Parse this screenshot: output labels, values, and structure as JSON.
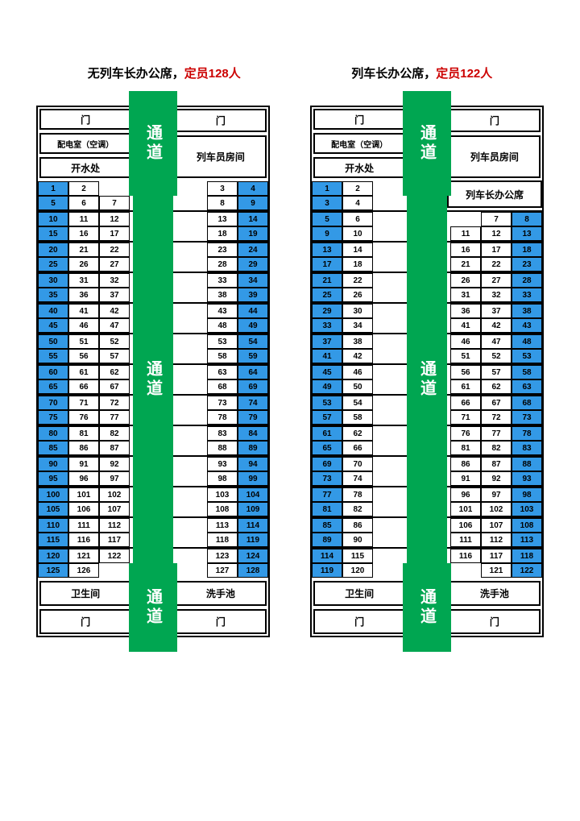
{
  "colors": {
    "green": "#00a651",
    "blue": "#3399e6",
    "red": "#cc0000",
    "black": "#000000",
    "white": "#ffffff"
  },
  "titles": {
    "left_prefix": "无列车长办公席，",
    "left_highlight": "定员128人",
    "right_prefix": "列车长办公席，",
    "right_highlight": "定员122人"
  },
  "labels": {
    "corridor": "通道",
    "door": "门",
    "power_room": "配电室（空调）",
    "hot_water": "开水处",
    "staff_room": "列车员房间",
    "conductor_office": "列车长办公席",
    "toilet": "卫生间",
    "wash": "洗手池"
  },
  "left_car": {
    "left_rows": [
      [
        {
          "n": "1",
          "w": 1
        },
        {
          "n": "2",
          "w": 0
        },
        {
          "n": "",
          "e": 1
        }
      ],
      [
        {
          "n": "5",
          "w": 1
        },
        {
          "n": "6",
          "w": 0
        },
        {
          "n": "7",
          "w": 0
        }
      ],
      [
        {
          "n": "10",
          "w": 1
        },
        {
          "n": "11",
          "w": 0
        },
        {
          "n": "12",
          "w": 0
        }
      ],
      [
        {
          "n": "15",
          "w": 1
        },
        {
          "n": "16",
          "w": 0
        },
        {
          "n": "17",
          "w": 0
        }
      ],
      [
        {
          "n": "20",
          "w": 1
        },
        {
          "n": "21",
          "w": 0
        },
        {
          "n": "22",
          "w": 0
        }
      ],
      [
        {
          "n": "25",
          "w": 1
        },
        {
          "n": "26",
          "w": 0
        },
        {
          "n": "27",
          "w": 0
        }
      ],
      [
        {
          "n": "30",
          "w": 1
        },
        {
          "n": "31",
          "w": 0
        },
        {
          "n": "32",
          "w": 0
        }
      ],
      [
        {
          "n": "35",
          "w": 1
        },
        {
          "n": "36",
          "w": 0
        },
        {
          "n": "37",
          "w": 0
        }
      ],
      [
        {
          "n": "40",
          "w": 1
        },
        {
          "n": "41",
          "w": 0
        },
        {
          "n": "42",
          "w": 0
        }
      ],
      [
        {
          "n": "45",
          "w": 1
        },
        {
          "n": "46",
          "w": 0
        },
        {
          "n": "47",
          "w": 0
        }
      ],
      [
        {
          "n": "50",
          "w": 1
        },
        {
          "n": "51",
          "w": 0
        },
        {
          "n": "52",
          "w": 0
        }
      ],
      [
        {
          "n": "55",
          "w": 1
        },
        {
          "n": "56",
          "w": 0
        },
        {
          "n": "57",
          "w": 0
        }
      ],
      [
        {
          "n": "60",
          "w": 1
        },
        {
          "n": "61",
          "w": 0
        },
        {
          "n": "62",
          "w": 0
        }
      ],
      [
        {
          "n": "65",
          "w": 1
        },
        {
          "n": "66",
          "w": 0
        },
        {
          "n": "67",
          "w": 0
        }
      ],
      [
        {
          "n": "70",
          "w": 1
        },
        {
          "n": "71",
          "w": 0
        },
        {
          "n": "72",
          "w": 0
        }
      ],
      [
        {
          "n": "75",
          "w": 1
        },
        {
          "n": "76",
          "w": 0
        },
        {
          "n": "77",
          "w": 0
        }
      ],
      [
        {
          "n": "80",
          "w": 1
        },
        {
          "n": "81",
          "w": 0
        },
        {
          "n": "82",
          "w": 0
        }
      ],
      [
        {
          "n": "85",
          "w": 1
        },
        {
          "n": "86",
          "w": 0
        },
        {
          "n": "87",
          "w": 0
        }
      ],
      [
        {
          "n": "90",
          "w": 1
        },
        {
          "n": "91",
          "w": 0
        },
        {
          "n": "92",
          "w": 0
        }
      ],
      [
        {
          "n": "95",
          "w": 1
        },
        {
          "n": "96",
          "w": 0
        },
        {
          "n": "97",
          "w": 0
        }
      ],
      [
        {
          "n": "100",
          "w": 1
        },
        {
          "n": "101",
          "w": 0
        },
        {
          "n": "102",
          "w": 0
        }
      ],
      [
        {
          "n": "105",
          "w": 1
        },
        {
          "n": "106",
          "w": 0
        },
        {
          "n": "107",
          "w": 0
        }
      ],
      [
        {
          "n": "110",
          "w": 1
        },
        {
          "n": "111",
          "w": 0
        },
        {
          "n": "112",
          "w": 0
        }
      ],
      [
        {
          "n": "115",
          "w": 1
        },
        {
          "n": "116",
          "w": 0
        },
        {
          "n": "117",
          "w": 0
        }
      ],
      [
        {
          "n": "120",
          "w": 1
        },
        {
          "n": "121",
          "w": 0
        },
        {
          "n": "122",
          "w": 0
        }
      ],
      [
        {
          "n": "125",
          "w": 1
        },
        {
          "n": "126",
          "w": 0
        },
        {
          "n": "",
          "e": 1
        }
      ]
    ],
    "right_rows": [
      [
        {
          "n": "3",
          "w": 0
        },
        {
          "n": "4",
          "w": 1
        }
      ],
      [
        {
          "n": "8",
          "w": 0
        },
        {
          "n": "9",
          "w": 1
        }
      ],
      [
        {
          "n": "13",
          "w": 0
        },
        {
          "n": "14",
          "w": 1
        }
      ],
      [
        {
          "n": "18",
          "w": 0
        },
        {
          "n": "19",
          "w": 1
        }
      ],
      [
        {
          "n": "23",
          "w": 0
        },
        {
          "n": "24",
          "w": 1
        }
      ],
      [
        {
          "n": "28",
          "w": 0
        },
        {
          "n": "29",
          "w": 1
        }
      ],
      [
        {
          "n": "33",
          "w": 0
        },
        {
          "n": "34",
          "w": 1
        }
      ],
      [
        {
          "n": "38",
          "w": 0
        },
        {
          "n": "39",
          "w": 1
        }
      ],
      [
        {
          "n": "43",
          "w": 0
        },
        {
          "n": "44",
          "w": 1
        }
      ],
      [
        {
          "n": "48",
          "w": 0
        },
        {
          "n": "49",
          "w": 1
        }
      ],
      [
        {
          "n": "53",
          "w": 0
        },
        {
          "n": "54",
          "w": 1
        }
      ],
      [
        {
          "n": "58",
          "w": 0
        },
        {
          "n": "59",
          "w": 1
        }
      ],
      [
        {
          "n": "63",
          "w": 0
        },
        {
          "n": "64",
          "w": 1
        }
      ],
      [
        {
          "n": "68",
          "w": 0
        },
        {
          "n": "69",
          "w": 1
        }
      ],
      [
        {
          "n": "73",
          "w": 0
        },
        {
          "n": "74",
          "w": 1
        }
      ],
      [
        {
          "n": "78",
          "w": 0
        },
        {
          "n": "79",
          "w": 1
        }
      ],
      [
        {
          "n": "83",
          "w": 0
        },
        {
          "n": "84",
          "w": 1
        }
      ],
      [
        {
          "n": "88",
          "w": 0
        },
        {
          "n": "89",
          "w": 1
        }
      ],
      [
        {
          "n": "93",
          "w": 0
        },
        {
          "n": "94",
          "w": 1
        }
      ],
      [
        {
          "n": "98",
          "w": 0
        },
        {
          "n": "99",
          "w": 1
        }
      ],
      [
        {
          "n": "103",
          "w": 0
        },
        {
          "n": "104",
          "w": 1
        }
      ],
      [
        {
          "n": "108",
          "w": 0
        },
        {
          "n": "109",
          "w": 1
        }
      ],
      [
        {
          "n": "113",
          "w": 0
        },
        {
          "n": "114",
          "w": 1
        }
      ],
      [
        {
          "n": "118",
          "w": 0
        },
        {
          "n": "119",
          "w": 1
        }
      ],
      [
        {
          "n": "123",
          "w": 0
        },
        {
          "n": "124",
          "w": 1
        }
      ],
      [
        {
          "n": "127",
          "w": 0
        },
        {
          "n": "128",
          "w": 1
        }
      ]
    ]
  },
  "right_car": {
    "left_rows": [
      [
        {
          "n": "1",
          "w": 1
        },
        {
          "n": "2",
          "w": 0
        },
        {
          "n": "",
          "e": 1
        }
      ],
      [
        {
          "n": "3",
          "w": 1
        },
        {
          "n": "4",
          "w": 0
        },
        {
          "n": "",
          "e": 1
        }
      ],
      [
        {
          "n": "5",
          "w": 1
        },
        {
          "n": "6",
          "w": 0
        },
        {
          "n": "",
          "e": 1
        }
      ],
      [
        {
          "n": "9",
          "w": 1
        },
        {
          "n": "10",
          "w": 0
        },
        {
          "n": "",
          "e": 1
        }
      ],
      [
        {
          "n": "13",
          "w": 1
        },
        {
          "n": "14",
          "w": 0
        },
        {
          "n": "",
          "e": 1
        }
      ],
      [
        {
          "n": "17",
          "w": 1
        },
        {
          "n": "18",
          "w": 0
        },
        {
          "n": "",
          "e": 1
        }
      ],
      [
        {
          "n": "21",
          "w": 1
        },
        {
          "n": "22",
          "w": 0
        },
        {
          "n": "",
          "e": 1
        }
      ],
      [
        {
          "n": "25",
          "w": 1
        },
        {
          "n": "26",
          "w": 0
        },
        {
          "n": "",
          "e": 1
        }
      ],
      [
        {
          "n": "29",
          "w": 1
        },
        {
          "n": "30",
          "w": 0
        },
        {
          "n": "",
          "e": 1
        }
      ],
      [
        {
          "n": "33",
          "w": 1
        },
        {
          "n": "34",
          "w": 0
        },
        {
          "n": "",
          "e": 1
        }
      ],
      [
        {
          "n": "37",
          "w": 1
        },
        {
          "n": "38",
          "w": 0
        },
        {
          "n": "",
          "e": 1
        }
      ],
      [
        {
          "n": "41",
          "w": 1
        },
        {
          "n": "42",
          "w": 0
        },
        {
          "n": "",
          "e": 1
        }
      ],
      [
        {
          "n": "45",
          "w": 1
        },
        {
          "n": "46",
          "w": 0
        },
        {
          "n": "",
          "e": 1
        }
      ],
      [
        {
          "n": "49",
          "w": 1
        },
        {
          "n": "50",
          "w": 0
        },
        {
          "n": "",
          "e": 1
        }
      ],
      [
        {
          "n": "53",
          "w": 1
        },
        {
          "n": "54",
          "w": 0
        },
        {
          "n": "",
          "e": 1
        }
      ],
      [
        {
          "n": "57",
          "w": 1
        },
        {
          "n": "58",
          "w": 0
        },
        {
          "n": "",
          "e": 1
        }
      ],
      [
        {
          "n": "61",
          "w": 1
        },
        {
          "n": "62",
          "w": 0
        },
        {
          "n": "",
          "e": 1
        }
      ],
      [
        {
          "n": "65",
          "w": 1
        },
        {
          "n": "66",
          "w": 0
        },
        {
          "n": "",
          "e": 1
        }
      ],
      [
        {
          "n": "69",
          "w": 1
        },
        {
          "n": "70",
          "w": 0
        },
        {
          "n": "",
          "e": 1
        }
      ],
      [
        {
          "n": "73",
          "w": 1
        },
        {
          "n": "74",
          "w": 0
        },
        {
          "n": "",
          "e": 1
        }
      ],
      [
        {
          "n": "77",
          "w": 1
        },
        {
          "n": "78",
          "w": 0
        },
        {
          "n": "",
          "e": 1
        }
      ],
      [
        {
          "n": "81",
          "w": 1
        },
        {
          "n": "82",
          "w": 0
        },
        {
          "n": "",
          "e": 1
        }
      ],
      [
        {
          "n": "85",
          "w": 1
        },
        {
          "n": "86",
          "w": 0
        },
        {
          "n": "",
          "e": 1
        }
      ],
      [
        {
          "n": "89",
          "w": 1
        },
        {
          "n": "90",
          "w": 0
        },
        {
          "n": "",
          "e": 1
        }
      ],
      [
        {
          "n": "114",
          "w": 1
        },
        {
          "n": "115",
          "w": 0
        },
        {
          "n": "",
          "e": 1
        }
      ],
      [
        {
          "n": "119",
          "w": 1
        },
        {
          "n": "120",
          "w": 0
        },
        {
          "n": "",
          "e": 1
        }
      ]
    ],
    "right_rows": [
      [
        {
          "n": "",
          "e": 1
        },
        {
          "n": "",
          "e": 1
        },
        {
          "n": "",
          "e": 1
        }
      ],
      [
        {
          "n": "",
          "e": 1
        },
        {
          "n": "",
          "e": 1
        },
        {
          "n": "",
          "e": 1
        }
      ],
      [
        {
          "n": "",
          "e": 1
        },
        {
          "n": "7",
          "w": 0
        },
        {
          "n": "8",
          "w": 1
        }
      ],
      [
        {
          "n": "11",
          "w": 0
        },
        {
          "n": "12",
          "w": 0
        },
        {
          "n": "13",
          "w": 1
        }
      ],
      [
        {
          "n": "16",
          "w": 0
        },
        {
          "n": "17",
          "w": 0
        },
        {
          "n": "18",
          "w": 1
        }
      ],
      [
        {
          "n": "21",
          "w": 0
        },
        {
          "n": "22",
          "w": 0
        },
        {
          "n": "23",
          "w": 1
        }
      ],
      [
        {
          "n": "26",
          "w": 0
        },
        {
          "n": "27",
          "w": 0
        },
        {
          "n": "28",
          "w": 1
        }
      ],
      [
        {
          "n": "31",
          "w": 0
        },
        {
          "n": "32",
          "w": 0
        },
        {
          "n": "33",
          "w": 1
        }
      ],
      [
        {
          "n": "36",
          "w": 0
        },
        {
          "n": "37",
          "w": 0
        },
        {
          "n": "38",
          "w": 1
        }
      ],
      [
        {
          "n": "41",
          "w": 0
        },
        {
          "n": "42",
          "w": 0
        },
        {
          "n": "43",
          "w": 1
        }
      ],
      [
        {
          "n": "46",
          "w": 0
        },
        {
          "n": "47",
          "w": 0
        },
        {
          "n": "48",
          "w": 1
        }
      ],
      [
        {
          "n": "51",
          "w": 0
        },
        {
          "n": "52",
          "w": 0
        },
        {
          "n": "53",
          "w": 1
        }
      ],
      [
        {
          "n": "56",
          "w": 0
        },
        {
          "n": "57",
          "w": 0
        },
        {
          "n": "58",
          "w": 1
        }
      ],
      [
        {
          "n": "61",
          "w": 0
        },
        {
          "n": "62",
          "w": 0
        },
        {
          "n": "63",
          "w": 1
        }
      ],
      [
        {
          "n": "66",
          "w": 0
        },
        {
          "n": "67",
          "w": 0
        },
        {
          "n": "68",
          "w": 1
        }
      ],
      [
        {
          "n": "71",
          "w": 0
        },
        {
          "n": "72",
          "w": 0
        },
        {
          "n": "73",
          "w": 1
        }
      ],
      [
        {
          "n": "76",
          "w": 0
        },
        {
          "n": "77",
          "w": 0
        },
        {
          "n": "78",
          "w": 1
        }
      ],
      [
        {
          "n": "81",
          "w": 0
        },
        {
          "n": "82",
          "w": 0
        },
        {
          "n": "83",
          "w": 1
        }
      ],
      [
        {
          "n": "86",
          "w": 0
        },
        {
          "n": "87",
          "w": 0
        },
        {
          "n": "88",
          "w": 1
        }
      ],
      [
        {
          "n": "91",
          "w": 0
        },
        {
          "n": "92",
          "w": 0
        },
        {
          "n": "93",
          "w": 1
        }
      ],
      [
        {
          "n": "96",
          "w": 0
        },
        {
          "n": "97",
          "w": 0
        },
        {
          "n": "98",
          "w": 1
        }
      ],
      [
        {
          "n": "101",
          "w": 0
        },
        {
          "n": "102",
          "w": 0
        },
        {
          "n": "103",
          "w": 1
        }
      ],
      [
        {
          "n": "106",
          "w": 0
        },
        {
          "n": "107",
          "w": 0
        },
        {
          "n": "108",
          "w": 1
        }
      ],
      [
        {
          "n": "111",
          "w": 0
        },
        {
          "n": "112",
          "w": 0
        },
        {
          "n": "113",
          "w": 1
        }
      ],
      [
        {
          "n": "116",
          "w": 0
        },
        {
          "n": "117",
          "w": 0
        },
        {
          "n": "118",
          "w": 1
        }
      ],
      [
        {
          "n": "",
          "e": 1
        },
        {
          "n": "121",
          "w": 0
        },
        {
          "n": "122",
          "w": 1
        }
      ]
    ],
    "has_office": true
  }
}
